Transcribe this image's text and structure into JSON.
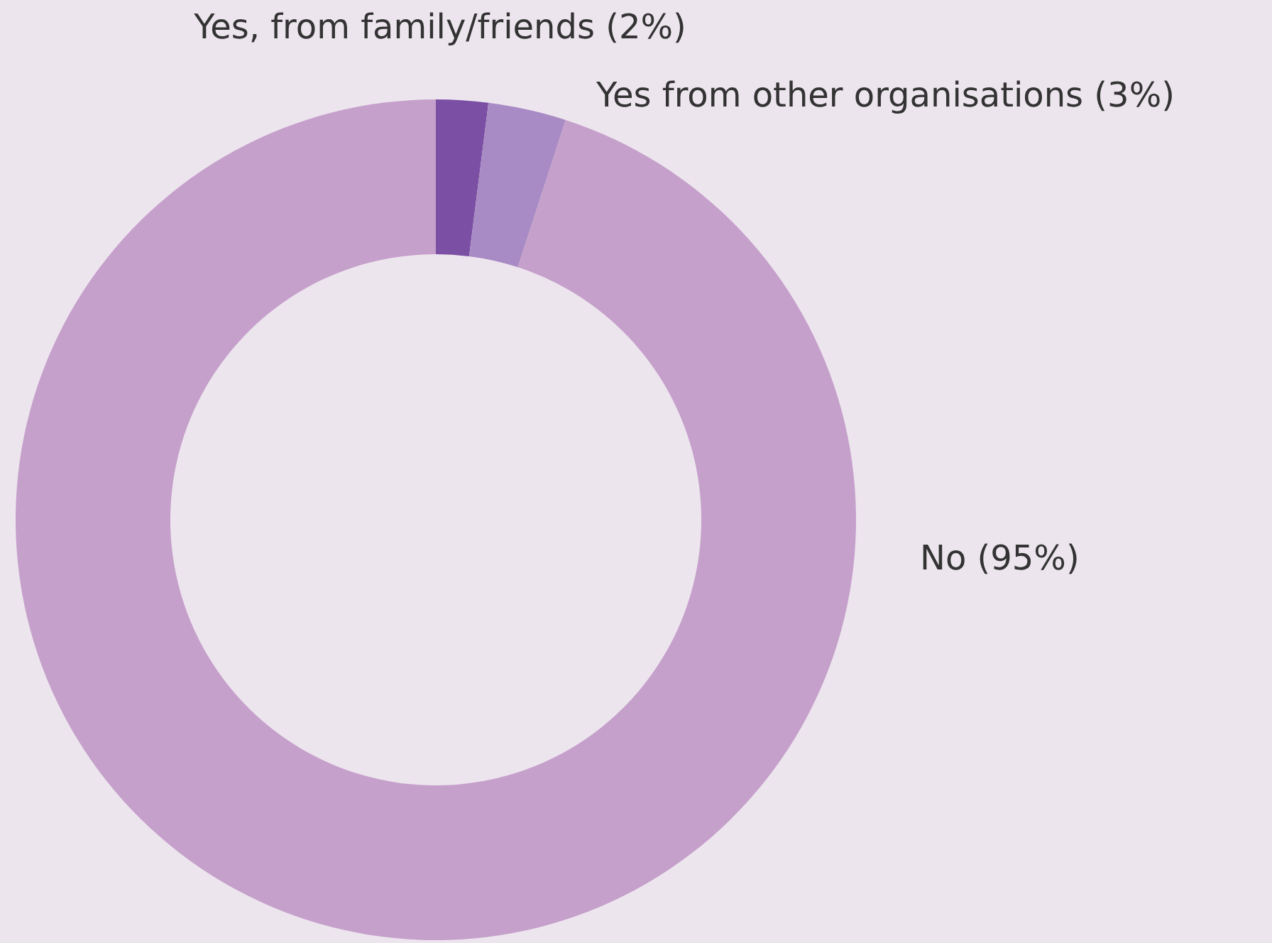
{
  "chart_data": {
    "type": "donut",
    "categories": [
      "Yes, from family/friends (2%)",
      "Yes from other organisations (3%)",
      "No (95%)"
    ],
    "values": [
      2,
      3,
      95
    ],
    "colors": [
      "#7b4fa3",
      "#a88bc4",
      "#c5a0cb"
    ]
  }
}
